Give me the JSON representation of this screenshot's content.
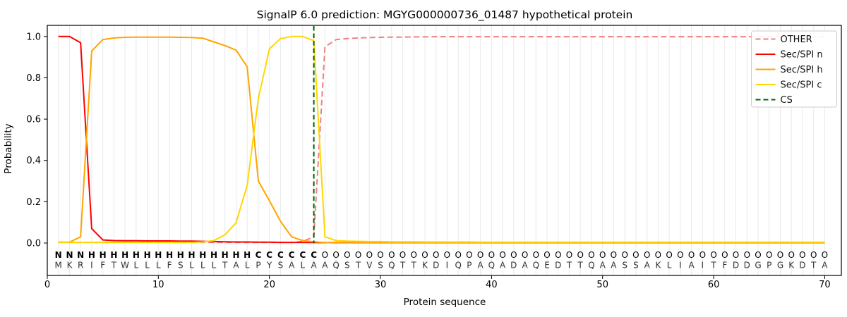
{
  "figure": {
    "title": "SignalP 6.0 prediction: MGYG000000736_01487 hypothetical protein",
    "xlabel": "Protein sequence",
    "ylabel": "Probability"
  },
  "chart_data": {
    "type": "line",
    "title": "SignalP 6.0 prediction: MGYG000000736_01487 hypothetical protein",
    "xlabel": "Protein sequence",
    "ylabel": "Probability",
    "xlim": [
      0,
      71.5
    ],
    "ylim": [
      -0.157,
      1.054
    ],
    "xticks": [
      0,
      10,
      20,
      30,
      40,
      50,
      60,
      70
    ],
    "yticks": [
      "0.0",
      "0.2",
      "0.4",
      "0.6",
      "0.8",
      "1.0"
    ],
    "grid": "vertical-per-residue",
    "legend_position": "upper right",
    "x_start": 1,
    "sequence": "MKRIFTWLLLFSLLLTALPYSALAAQSTVSQTTKDIQPAQADAQEDTTQAASSAKLIAITFDDGPGKDTA",
    "regions": "NNNHHHHHHHHHHHHHHHCCCCCCOOOOOOOOOOOOOOOOOOOOOOOOOOOOOOOOOOOOOOOOOOOOOO",
    "region_colors": {
      "N": "#ff0000",
      "H": "#ffa500",
      "C": "#ffd700",
      "O": "#a6a6a6"
    },
    "aa_letter_color": "#333333",
    "cs_marker": {
      "label": "CS",
      "color": "#006400",
      "dash": "dashed",
      "x": 24
    },
    "series": [
      {
        "name": "OTHER",
        "color": "#f08080",
        "dash": "dashed",
        "values": [
          0.003,
          0.003,
          0.003,
          0.003,
          0.003,
          0.003,
          0.003,
          0.003,
          0.003,
          0.003,
          0.003,
          0.003,
          0.003,
          0.003,
          0.003,
          0.003,
          0.003,
          0.003,
          0.003,
          0.003,
          0.003,
          0.003,
          0.008,
          0.03,
          0.95,
          0.985,
          0.99,
          0.993,
          0.995,
          0.996,
          0.997,
          0.997,
          0.998,
          0.998,
          0.999,
          0.999,
          0.999,
          0.999,
          0.999,
          0.999,
          0.999,
          0.999,
          0.999,
          0.999,
          0.999,
          0.999,
          0.999,
          0.999,
          0.999,
          0.999,
          0.999,
          0.999,
          0.999,
          0.999,
          0.999,
          0.999,
          0.999,
          0.999,
          0.999,
          0.999,
          0.999,
          0.999,
          0.999,
          0.999,
          0.999,
          0.999,
          0.999,
          0.999,
          0.999,
          0.999
        ]
      },
      {
        "name": "Sec/SPI n",
        "color": "#ff0000",
        "dash": "solid",
        "values": [
          1.0,
          1.0,
          0.97,
          0.07,
          0.015,
          0.012,
          0.011,
          0.011,
          0.01,
          0.01,
          0.01,
          0.009,
          0.009,
          0.008,
          0.007,
          0.006,
          0.005,
          0.005,
          0.004,
          0.004,
          0.003,
          0.003,
          0.003,
          0.002,
          0.002,
          0.002,
          0.002,
          0.002,
          0.002,
          0.002,
          0.002,
          0.002,
          0.002,
          0.002,
          0.002,
          0.002,
          0.002,
          0.002,
          0.002,
          0.002,
          0.002,
          0.002,
          0.002,
          0.002,
          0.002,
          0.002,
          0.002,
          0.002,
          0.002,
          0.002,
          0.002,
          0.002,
          0.002,
          0.002,
          0.002,
          0.002,
          0.002,
          0.002,
          0.002,
          0.002,
          0.002,
          0.002,
          0.002,
          0.002,
          0.002,
          0.002,
          0.002,
          0.002,
          0.002,
          0.002
        ]
      },
      {
        "name": "Sec/SPI h",
        "color": "#ffa500",
        "dash": "solid",
        "values": [
          0.004,
          0.004,
          0.03,
          0.93,
          0.985,
          0.993,
          0.996,
          0.997,
          0.997,
          0.997,
          0.997,
          0.996,
          0.995,
          0.992,
          0.974,
          0.956,
          0.934,
          0.853,
          0.3,
          0.205,
          0.105,
          0.03,
          0.012,
          0.006,
          0.002,
          0.001,
          0.001,
          0.001,
          0.001,
          0.001,
          0.001,
          0.001,
          0.001,
          0.001,
          0.001,
          0.001,
          0.001,
          0.001,
          0.001,
          0.001,
          0.001,
          0.001,
          0.001,
          0.001,
          0.001,
          0.001,
          0.001,
          0.001,
          0.001,
          0.001,
          0.001,
          0.001,
          0.001,
          0.001,
          0.001,
          0.001,
          0.001,
          0.001,
          0.001,
          0.001,
          0.001,
          0.001,
          0.001,
          0.001,
          0.001,
          0.001,
          0.001,
          0.001,
          0.001,
          0.001
        ]
      },
      {
        "name": "Sec/SPI c",
        "color": "#ffd700",
        "dash": "solid",
        "values": [
          0.003,
          0.003,
          0.003,
          0.003,
          0.003,
          0.003,
          0.003,
          0.003,
          0.003,
          0.003,
          0.003,
          0.003,
          0.003,
          0.005,
          0.012,
          0.04,
          0.098,
          0.28,
          0.7,
          0.94,
          0.99,
          1.0,
          1.0,
          0.98,
          0.03,
          0.012,
          0.009,
          0.008,
          0.007,
          0.007,
          0.006,
          0.006,
          0.006,
          0.005,
          0.005,
          0.005,
          0.005,
          0.005,
          0.004,
          0.004,
          0.004,
          0.004,
          0.004,
          0.004,
          0.004,
          0.004,
          0.004,
          0.004,
          0.004,
          0.004,
          0.004,
          0.004,
          0.004,
          0.004,
          0.004,
          0.004,
          0.004,
          0.004,
          0.004,
          0.004,
          0.004,
          0.004,
          0.004,
          0.004,
          0.004,
          0.004,
          0.004,
          0.004,
          0.004,
          0.004
        ]
      }
    ],
    "legend_entries": [
      {
        "label": "OTHER",
        "color": "#f08080",
        "dash": "dashed"
      },
      {
        "label": "Sec/SPI n",
        "color": "#ff0000",
        "dash": "solid"
      },
      {
        "label": "Sec/SPI h",
        "color": "#ffa500",
        "dash": "solid"
      },
      {
        "label": "Sec/SPI c",
        "color": "#ffd700",
        "dash": "solid"
      },
      {
        "label": "CS",
        "color": "#006400",
        "dash": "dashed"
      }
    ]
  }
}
